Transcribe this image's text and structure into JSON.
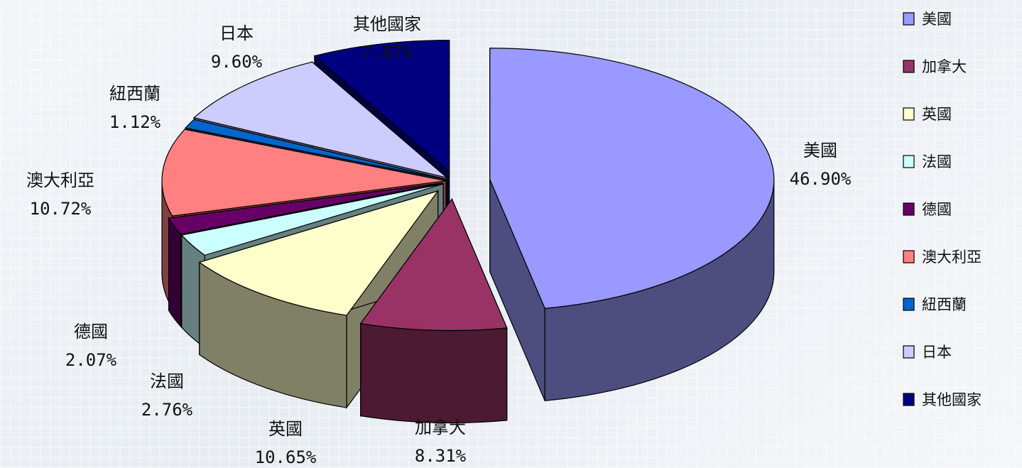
{
  "chart_data": {
    "type": "pie",
    "style": "3d-exploded",
    "categories": [
      "美國",
      "加拿大",
      "英國",
      "法國",
      "德國",
      "澳大利亞",
      "紐西蘭",
      "日本",
      "其他國家"
    ],
    "values": [
      46.9,
      8.31,
      10.65,
      2.76,
      2.07,
      10.72,
      1.12,
      9.6,
      7.87
    ],
    "value_labels": [
      "46.90%",
      "8.31%",
      "10.65%",
      "2.76%",
      "2.07%",
      "10.72%",
      "1.12%",
      "9.60%",
      "7.87%"
    ],
    "colors": [
      "#9999FF",
      "#993366",
      "#FFFFCC",
      "#CCFFFF",
      "#660066",
      "#FF8080",
      "#0066CC",
      "#CCCCFF",
      "#000080"
    ],
    "side_colors": [
      "#4d4d80",
      "#4d1a33",
      "#808066",
      "#668080",
      "#330033",
      "#804040",
      "#003366",
      "#666680",
      "#000040"
    ],
    "legend": {
      "position": "right",
      "entries": [
        "美國",
        "加拿大",
        "英國",
        "法國",
        "德國",
        "澳大利亞",
        "紐西蘭",
        "日本",
        "其他國家"
      ]
    }
  }
}
